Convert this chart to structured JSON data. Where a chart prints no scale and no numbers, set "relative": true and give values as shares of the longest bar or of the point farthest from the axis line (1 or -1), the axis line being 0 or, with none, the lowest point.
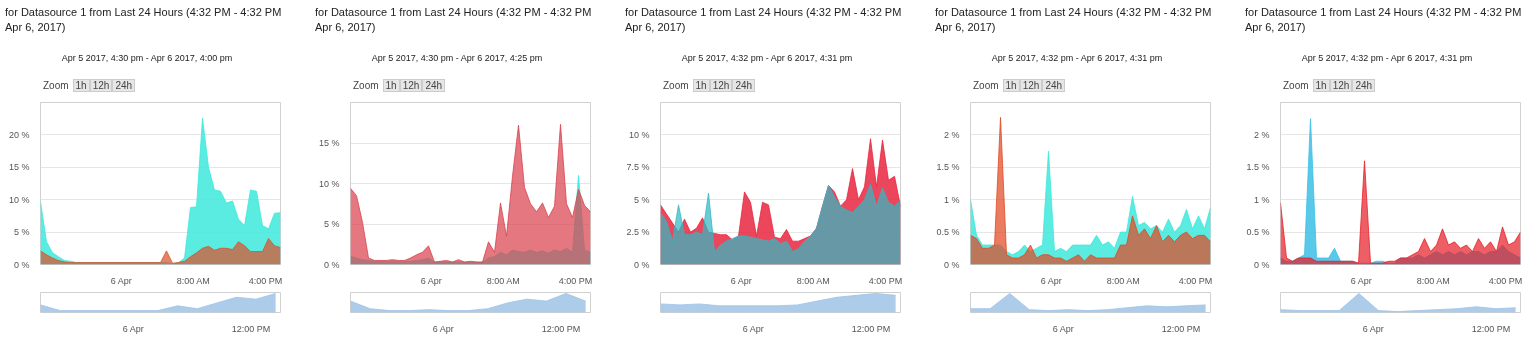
{
  "chart_data": [
    {
      "type": "area",
      "title": "for Datasource 1 from Last 24 Hours (4:32 PM - 4:32 PM Apr 6, 2017)",
      "subtitle": "Apr 5 2017, 4:30 pm - Apr 6 2017, 4:00 pm",
      "annotations": [
        "Zoom",
        "1h",
        "12h",
        "24h"
      ],
      "grid": "y",
      "x": [
        "2017-04-05T15:00",
        "2017-04-05T15:40",
        "2017-04-05T16:20",
        "2017-04-05T17:00",
        "2017-04-05T17:40",
        "2017-04-05T18:20",
        "2017-04-05T19:00",
        "2017-04-05T19:40",
        "2017-04-05T20:20",
        "2017-04-05T21:00",
        "2017-04-05T21:40",
        "2017-04-05T22:20",
        "2017-04-05T23:00",
        "2017-04-05T23:40",
        "2017-04-06T00:20",
        "2017-04-06T01:00",
        "2017-04-06T01:40",
        "2017-04-06T02:20",
        "2017-04-06T03:00",
        "2017-04-06T03:40",
        "2017-04-06T04:20",
        "2017-04-06T05:00",
        "2017-04-06T05:40",
        "2017-04-06T06:20",
        "2017-04-06T07:00",
        "2017-04-06T07:40",
        "2017-04-06T08:20",
        "2017-04-06T09:00",
        "2017-04-06T09:40",
        "2017-04-06T10:20",
        "2017-04-06T11:00",
        "2017-04-06T11:40",
        "2017-04-06T12:20",
        "2017-04-06T13:00",
        "2017-04-06T13:40",
        "2017-04-06T14:20",
        "2017-04-06T15:00",
        "2017-04-06T15:40",
        "2017-04-06T16:20",
        "2017-04-06T17:00",
        "2017-04-06T17:40"
      ],
      "xlim": [
        "2017-04-05T15:00",
        "2017-04-06T17:40"
      ],
      "xticks": [
        {
          "value": "2017-04-06T00:00",
          "label": "6 Apr"
        },
        {
          "value": "2017-04-06T08:00",
          "label": "8:00 AM"
        },
        {
          "value": "2017-04-06T16:00",
          "label": "4:00 PM"
        }
      ],
      "ylim": [
        0,
        25
      ],
      "yticks": [
        {
          "value": 0,
          "label": "0 %"
        },
        {
          "value": 5,
          "label": "5 %"
        },
        {
          "value": 10,
          "label": "10 %"
        },
        {
          "value": 15,
          "label": "15 %"
        },
        {
          "value": 20,
          "label": "20 %"
        }
      ],
      "series": [
        {
          "color": "#3de8dc",
          "values": [
            9.7,
            3.5,
            1.8,
            1.2,
            0.6,
            0.5,
            0.3,
            0.3,
            0.3,
            0.3,
            0.3,
            0.3,
            0.3,
            0.3,
            0.3,
            0.3,
            0.3,
            0.3,
            0.3,
            0.3,
            0.3,
            0.3,
            0.1,
            0.3,
            1.0,
            8.8,
            8.9,
            22.6,
            15.0,
            11.5,
            11.3,
            9.5,
            9.8,
            7.0,
            6.0,
            11.5,
            11.3,
            6.0,
            5.5,
            7.9,
            8.0
          ]
        },
        {
          "color": "#d9532c",
          "values": [
            2.1,
            1.5,
            1.0,
            0.6,
            0.4,
            0.3,
            0.3,
            0.3,
            0.3,
            0.3,
            0.3,
            0.3,
            0.3,
            0.3,
            0.3,
            0.3,
            0.3,
            0.3,
            0.3,
            0.3,
            0.3,
            2.1,
            0.2,
            0.3,
            0.5,
            1.2,
            1.8,
            2.5,
            2.8,
            2.2,
            2.5,
            2.5,
            2.3,
            3.5,
            2.9,
            2.0,
            2.0,
            2.0,
            4.0,
            2.9,
            2.6
          ]
        }
      ]
    },
    {
      "type": "area",
      "relative": true,
      "x": [
        "2017-04-05T14:30",
        "2017-04-05T16:30",
        "2017-04-05T18:30",
        "2017-04-05T20:30",
        "2017-04-05T22:30",
        "2017-04-06T00:30",
        "2017-04-06T02:30",
        "2017-04-06T04:30",
        "2017-04-06T06:30",
        "2017-04-06T08:30",
        "2017-04-06T10:30",
        "2017-04-06T12:30",
        "2017-04-06T14:30"
      ],
      "xlim": [
        "2017-04-05T14:30",
        "2017-04-06T15:00"
      ],
      "xticks": [
        {
          "value": "2017-04-06T00:00",
          "label": "6 Apr"
        },
        {
          "value": "2017-04-06T12:00",
          "label": "12:00 PM"
        }
      ],
      "series": [
        {
          "color": "#9ec3e6",
          "values": [
            0.4,
            0.1,
            0.1,
            0.1,
            0.1,
            0.1,
            0.1,
            0.35,
            0.2,
            0.5,
            0.8,
            0.7,
            1
          ]
        }
      ]
    },
    {
      "type": "area",
      "title": "for Datasource 1 from Last 24 Hours (4:32 PM - 4:32 PM Apr 6, 2017)",
      "subtitle": "Apr 5 2017, 4:30 pm - Apr 6 2017, 4:25 pm",
      "annotations": [
        "Zoom",
        "1h",
        "12h",
        "24h"
      ],
      "grid": "y",
      "x": [
        "2017-04-05T15:00",
        "2017-04-05T15:40",
        "2017-04-05T16:20",
        "2017-04-05T17:00",
        "2017-04-05T17:40",
        "2017-04-05T18:20",
        "2017-04-05T19:00",
        "2017-04-05T19:40",
        "2017-04-05T20:20",
        "2017-04-05T21:00",
        "2017-04-05T21:40",
        "2017-04-05T22:20",
        "2017-04-05T23:00",
        "2017-04-05T23:40",
        "2017-04-06T00:20",
        "2017-04-06T01:00",
        "2017-04-06T01:40",
        "2017-04-06T02:20",
        "2017-04-06T03:00",
        "2017-04-06T03:40",
        "2017-04-06T04:20",
        "2017-04-06T05:00",
        "2017-04-06T05:40",
        "2017-04-06T06:20",
        "2017-04-06T07:00",
        "2017-04-06T07:40",
        "2017-04-06T08:20",
        "2017-04-06T09:00",
        "2017-04-06T09:40",
        "2017-04-06T10:20",
        "2017-04-06T11:00",
        "2017-04-06T11:40",
        "2017-04-06T12:20",
        "2017-04-06T13:00",
        "2017-04-06T13:40",
        "2017-04-06T14:20",
        "2017-04-06T15:00",
        "2017-04-06T15:40",
        "2017-04-06T16:20",
        "2017-04-06T17:00",
        "2017-04-06T17:40"
      ],
      "xlim": [
        "2017-04-05T15:00",
        "2017-04-06T17:40"
      ],
      "xticks": [
        {
          "value": "2017-04-06T00:00",
          "label": "6 Apr"
        },
        {
          "value": "2017-04-06T08:00",
          "label": "8:00 AM"
        },
        {
          "value": "2017-04-06T16:00",
          "label": "4:00 PM"
        }
      ],
      "ylim": [
        0,
        20
      ],
      "yticks": [
        {
          "value": 0,
          "label": "0 %"
        },
        {
          "value": 5,
          "label": "5 %"
        },
        {
          "value": 10,
          "label": "10 %"
        },
        {
          "value": 15,
          "label": "15 %"
        }
      ],
      "series": [
        {
          "color": "#3de8dc",
          "values": [
            1.0,
            0.8,
            0.6,
            0.5,
            0.4,
            0.4,
            0.4,
            0.4,
            0.4,
            0.4,
            0.4,
            0.5,
            0.6,
            0.8,
            0.3,
            0.3,
            0.3,
            0.3,
            0.3,
            0.3,
            0.3,
            0.3,
            0.3,
            0.8,
            1.0,
            1.5,
            1.2,
            1.8,
            1.6,
            1.5,
            1.8,
            1.5,
            1.7,
            1.4,
            1.8,
            1.6,
            2.0,
            1.5,
            11.0,
            1.8,
            1.5
          ]
        },
        {
          "color": "#d9434e",
          "values": [
            9.4,
            8.5,
            5.2,
            0.8,
            0.5,
            0.5,
            0.5,
            0.6,
            0.5,
            0.5,
            0.8,
            1.2,
            1.5,
            2.3,
            0.3,
            0.4,
            0.5,
            0.3,
            0.6,
            0.3,
            0.4,
            0.3,
            0.3,
            2.8,
            1.5,
            7.6,
            3.5,
            10.9,
            17.2,
            9.5,
            7.5,
            6.5,
            7.6,
            5.8,
            7.2,
            17.3,
            7.5,
            5.8,
            9.3,
            7.3,
            6.5
          ]
        }
      ]
    },
    {
      "type": "area",
      "relative": true,
      "x": [
        "2017-04-05T14:30",
        "2017-04-05T16:30",
        "2017-04-05T18:30",
        "2017-04-05T20:30",
        "2017-04-05T22:30",
        "2017-04-06T00:30",
        "2017-04-06T02:30",
        "2017-04-06T04:30",
        "2017-04-06T06:30",
        "2017-04-06T08:30",
        "2017-04-06T10:30",
        "2017-04-06T12:30",
        "2017-04-06T14:30"
      ],
      "xlim": [
        "2017-04-05T14:30",
        "2017-04-06T15:00"
      ],
      "xticks": [
        {
          "value": "2017-04-06T00:00",
          "label": "6 Apr"
        },
        {
          "value": "2017-04-06T12:00",
          "label": "12:00 PM"
        }
      ],
      "series": [
        {
          "color": "#9ec3e6",
          "values": [
            0.6,
            0.2,
            0.1,
            0.1,
            0.15,
            0.1,
            0.1,
            0.2,
            0.5,
            0.7,
            0.6,
            1,
            0.6
          ]
        }
      ]
    },
    {
      "type": "area",
      "title": "for Datasource 1 from Last 24 Hours (4:32 PM - 4:32 PM Apr 6, 2017)",
      "subtitle": "Apr 5 2017, 4:32 pm - Apr 6 2017, 4:31 pm",
      "annotations": [
        "Zoom",
        "1h",
        "12h",
        "24h"
      ],
      "grid": "y",
      "x": [
        "2017-04-05T15:00",
        "2017-04-05T15:40",
        "2017-04-05T16:20",
        "2017-04-05T17:00",
        "2017-04-05T17:40",
        "2017-04-05T18:20",
        "2017-04-05T19:00",
        "2017-04-05T19:40",
        "2017-04-05T20:20",
        "2017-04-05T21:00",
        "2017-04-05T21:40",
        "2017-04-05T22:20",
        "2017-04-05T23:00",
        "2017-04-05T23:40",
        "2017-04-06T00:20",
        "2017-04-06T01:00",
        "2017-04-06T01:40",
        "2017-04-06T02:20",
        "2017-04-06T03:00",
        "2017-04-06T03:40",
        "2017-04-06T04:20",
        "2017-04-06T05:00",
        "2017-04-06T05:40",
        "2017-04-06T06:20",
        "2017-04-06T07:00",
        "2017-04-06T07:40",
        "2017-04-06T08:20",
        "2017-04-06T09:00",
        "2017-04-06T09:40",
        "2017-04-06T10:20",
        "2017-04-06T11:00",
        "2017-04-06T11:40",
        "2017-04-06T12:20",
        "2017-04-06T13:00",
        "2017-04-06T13:40",
        "2017-04-06T14:20",
        "2017-04-06T15:00",
        "2017-04-06T15:40",
        "2017-04-06T16:20",
        "2017-04-06T17:00",
        "2017-04-06T17:40"
      ],
      "xlim": [
        "2017-04-05T15:00",
        "2017-04-06T17:40"
      ],
      "xticks": [
        {
          "value": "2017-04-06T00:00",
          "label": "6 Apr"
        },
        {
          "value": "2017-04-06T08:00",
          "label": "8:00 AM"
        },
        {
          "value": "2017-04-06T16:00",
          "label": "4:00 PM"
        }
      ],
      "ylim": [
        0,
        12.5
      ],
      "yticks": [
        {
          "value": 0,
          "label": "0 %"
        },
        {
          "value": 2.5,
          "label": "2.5 %"
        },
        {
          "value": 5,
          "label": "5 %"
        },
        {
          "value": 7.5,
          "label": "7.5 %"
        },
        {
          "value": 10,
          "label": "10 %"
        }
      ],
      "series": [
        {
          "color": "#e8263f",
          "values": [
            4.6,
            3.9,
            3.2,
            2.5,
            3.5,
            2.5,
            2.8,
            3.6,
            2.5,
            2.4,
            2.3,
            2.3,
            1.9,
            2.2,
            5.6,
            4.8,
            2.2,
            4.8,
            4.6,
            2.1,
            2.0,
            2.7,
            1.8,
            1.8,
            2.0,
            2.2,
            2.8,
            4.5,
            6.1,
            5.6,
            4.5,
            5.0,
            7.4,
            5.0,
            6.0,
            9.7,
            6.0,
            9.6,
            6.5,
            6.8,
            4.5
          ]
        },
        {
          "color": "#33b8c4",
          "values": [
            4.0,
            3.3,
            1.8,
            4.6,
            2.3,
            2.3,
            2.5,
            2.3,
            5.5,
            1.0,
            1.5,
            1.8,
            2.0,
            2.2,
            2.2,
            2.1,
            2.0,
            1.9,
            1.8,
            2.0,
            1.6,
            1.8,
            1.0,
            1.2,
            1.8,
            2.2,
            2.8,
            4.5,
            6.1,
            5.2,
            4.5,
            4.2,
            4.0,
            4.5,
            5.0,
            6.2,
            4.5,
            5.9,
            4.8,
            4.5,
            4.9
          ]
        }
      ]
    },
    {
      "type": "area",
      "relative": true,
      "x": [
        "2017-04-05T14:30",
        "2017-04-05T16:30",
        "2017-04-05T18:30",
        "2017-04-05T20:30",
        "2017-04-05T22:30",
        "2017-04-06T00:30",
        "2017-04-06T02:30",
        "2017-04-06T04:30",
        "2017-04-06T06:30",
        "2017-04-06T08:30",
        "2017-04-06T10:30",
        "2017-04-06T12:30",
        "2017-04-06T14:30"
      ],
      "xlim": [
        "2017-04-05T14:30",
        "2017-04-06T15:00"
      ],
      "xticks": [
        {
          "value": "2017-04-06T00:00",
          "label": "6 Apr"
        },
        {
          "value": "2017-04-06T12:00",
          "label": "12:00 PM"
        }
      ],
      "series": [
        {
          "color": "#9ec3e6",
          "values": [
            0.45,
            0.4,
            0.45,
            0.35,
            0.35,
            0.35,
            0.35,
            0.4,
            0.6,
            0.8,
            0.9,
            1,
            0.9
          ]
        }
      ]
    },
    {
      "type": "area",
      "title": "for Datasource 1 from Last 24 Hours (4:32 PM - 4:32 PM Apr 6, 2017)",
      "subtitle": "Apr 5 2017, 4:32 pm - Apr 6 2017, 4:31 pm",
      "annotations": [
        "Zoom",
        "1h",
        "12h",
        "24h"
      ],
      "grid": "y",
      "x": [
        "2017-04-05T15:00",
        "2017-04-05T15:40",
        "2017-04-05T16:20",
        "2017-04-05T17:00",
        "2017-04-05T17:40",
        "2017-04-05T18:20",
        "2017-04-05T19:00",
        "2017-04-05T19:40",
        "2017-04-05T20:20",
        "2017-04-05T21:00",
        "2017-04-05T21:40",
        "2017-04-05T22:20",
        "2017-04-05T23:00",
        "2017-04-05T23:40",
        "2017-04-06T00:20",
        "2017-04-06T01:00",
        "2017-04-06T01:40",
        "2017-04-06T02:20",
        "2017-04-06T03:00",
        "2017-04-06T03:40",
        "2017-04-06T04:20",
        "2017-04-06T05:00",
        "2017-04-06T05:40",
        "2017-04-06T06:20",
        "2017-04-06T07:00",
        "2017-04-06T07:40",
        "2017-04-06T08:20",
        "2017-04-06T09:00",
        "2017-04-06T09:40",
        "2017-04-06T10:20",
        "2017-04-06T11:00",
        "2017-04-06T11:40",
        "2017-04-06T12:20",
        "2017-04-06T13:00",
        "2017-04-06T13:40",
        "2017-04-06T14:20",
        "2017-04-06T15:00",
        "2017-04-06T15:40",
        "2017-04-06T16:20",
        "2017-04-06T17:00",
        "2017-04-06T17:40"
      ],
      "xlim": [
        "2017-04-05T15:00",
        "2017-04-06T17:40"
      ],
      "xticks": [
        {
          "value": "2017-04-06T00:00",
          "label": "6 Apr"
        },
        {
          "value": "2017-04-06T08:00",
          "label": "8:00 AM"
        },
        {
          "value": "2017-04-06T16:00",
          "label": "4:00 PM"
        }
      ],
      "ylim": [
        0,
        2.5
      ],
      "yticks": [
        {
          "value": 0,
          "label": "0 %"
        },
        {
          "value": 0.5,
          "label": "0.5 %"
        },
        {
          "value": 1,
          "label": "1 %"
        },
        {
          "value": 1.5,
          "label": "1.5 %"
        },
        {
          "value": 2,
          "label": "2 %"
        }
      ],
      "series": [
        {
          "color": "#3de8dc",
          "values": [
            1.0,
            0.45,
            0.3,
            0.3,
            0.3,
            0.3,
            0.2,
            0.15,
            0.2,
            0.3,
            0.2,
            0.25,
            0.3,
            1.75,
            0.2,
            0.25,
            0.2,
            0.3,
            0.3,
            0.3,
            0.3,
            0.45,
            0.3,
            0.35,
            0.25,
            0.5,
            0.5,
            1.05,
            0.6,
            0.65,
            0.55,
            0.6,
            0.5,
            0.7,
            0.5,
            0.6,
            0.85,
            0.55,
            0.75,
            0.55,
            0.88
          ]
        },
        {
          "color": "#e04a24",
          "values": [
            0.45,
            0.4,
            0.25,
            0.25,
            0.3,
            2.27,
            0.15,
            0.1,
            0.1,
            0.15,
            0.3,
            0.1,
            0.15,
            0.15,
            0.1,
            0.1,
            0.05,
            0.1,
            0.15,
            0.05,
            0.15,
            0.1,
            0.1,
            0.1,
            0.1,
            0.3,
            0.3,
            0.75,
            0.45,
            0.55,
            0.4,
            0.6,
            0.35,
            0.45,
            0.35,
            0.45,
            0.5,
            0.4,
            0.45,
            0.45,
            0.35
          ]
        }
      ]
    },
    {
      "type": "area",
      "relative": true,
      "x": [
        "2017-04-05T14:30",
        "2017-04-05T16:30",
        "2017-04-05T18:30",
        "2017-04-05T20:30",
        "2017-04-05T22:30",
        "2017-04-06T00:30",
        "2017-04-06T02:30",
        "2017-04-06T04:30",
        "2017-04-06T06:30",
        "2017-04-06T08:30",
        "2017-04-06T10:30",
        "2017-04-06T12:30",
        "2017-04-06T14:30"
      ],
      "xlim": [
        "2017-04-05T14:30",
        "2017-04-06T15:00"
      ],
      "xticks": [
        {
          "value": "2017-04-06T00:00",
          "label": "6 Apr"
        },
        {
          "value": "2017-04-06T12:00",
          "label": "12:00 PM"
        }
      ],
      "series": [
        {
          "color": "#9ec3e6",
          "values": [
            0.2,
            0.2,
            1,
            0.15,
            0.1,
            0.15,
            0.1,
            0.15,
            0.25,
            0.35,
            0.3,
            0.35,
            0.4
          ]
        }
      ]
    },
    {
      "type": "area",
      "title": "for Datasource 1 from Last 24 Hours (4:32 PM - 4:32 PM Apr 6, 2017)",
      "subtitle": "Apr 5 2017, 4:32 pm - Apr 6 2017, 4:31 pm",
      "annotations": [
        "Zoom",
        "1h",
        "12h",
        "24h"
      ],
      "grid": "y",
      "x": [
        "2017-04-05T15:00",
        "2017-04-05T15:40",
        "2017-04-05T16:20",
        "2017-04-05T17:00",
        "2017-04-05T17:40",
        "2017-04-05T18:20",
        "2017-04-05T19:00",
        "2017-04-05T19:40",
        "2017-04-05T20:20",
        "2017-04-05T21:00",
        "2017-04-05T21:40",
        "2017-04-05T22:20",
        "2017-04-05T23:00",
        "2017-04-05T23:40",
        "2017-04-06T00:20",
        "2017-04-06T01:00",
        "2017-04-06T01:40",
        "2017-04-06T02:20",
        "2017-04-06T03:00",
        "2017-04-06T03:40",
        "2017-04-06T04:20",
        "2017-04-06T05:00",
        "2017-04-06T05:40",
        "2017-04-06T06:20",
        "2017-04-06T07:00",
        "2017-04-06T07:40",
        "2017-04-06T08:20",
        "2017-04-06T09:00",
        "2017-04-06T09:40",
        "2017-04-06T10:20",
        "2017-04-06T11:00",
        "2017-04-06T11:40",
        "2017-04-06T12:20",
        "2017-04-06T13:00",
        "2017-04-06T13:40",
        "2017-04-06T14:20",
        "2017-04-06T15:00",
        "2017-04-06T15:40",
        "2017-04-06T16:20",
        "2017-04-06T17:00",
        "2017-04-06T17:40"
      ],
      "xlim": [
        "2017-04-05T15:00",
        "2017-04-06T17:40"
      ],
      "xticks": [
        {
          "value": "2017-04-06T00:00",
          "label": "6 Apr"
        },
        {
          "value": "2017-04-06T08:00",
          "label": "8:00 AM"
        },
        {
          "value": "2017-04-06T16:00",
          "label": "4:00 PM"
        }
      ],
      "ylim": [
        0,
        2.5
      ],
      "yticks": [
        {
          "value": 0,
          "label": "0 %"
        },
        {
          "value": 0.5,
          "label": "0.5 %"
        },
        {
          "value": 1,
          "label": "1 %"
        },
        {
          "value": 1.5,
          "label": "1.5 %"
        },
        {
          "value": 2,
          "label": "2 %"
        }
      ],
      "series": [
        {
          "color": "#3bbfe6",
          "values": [
            0.1,
            0.05,
            0.05,
            0.1,
            0.15,
            2.25,
            0.1,
            0.1,
            0.1,
            0.25,
            0.05,
            0.05,
            0.05,
            0.02,
            0.02,
            0.02,
            0.05,
            0.05,
            0.02,
            0.02,
            0.1,
            0.1,
            0.1,
            0.15,
            0.1,
            0.15,
            0.2,
            0.15,
            0.2,
            0.15,
            0.2,
            0.15,
            0.2,
            0.2,
            0.15,
            0.2,
            0.2,
            0.3,
            0.2,
            0.15,
            0.1
          ]
        },
        {
          "color": "#e8202a",
          "values": [
            0.95,
            0.1,
            0.05,
            0.1,
            0.1,
            0.1,
            0.05,
            0.05,
            0.05,
            0.05,
            0.05,
            0.05,
            0.05,
            0.02,
            1.6,
            0.02,
            0.02,
            0.02,
            0.05,
            0.05,
            0.1,
            0.1,
            0.15,
            0.2,
            0.4,
            0.2,
            0.3,
            0.55,
            0.3,
            0.35,
            0.25,
            0.3,
            0.2,
            0.4,
            0.25,
            0.35,
            0.2,
            0.58,
            0.3,
            0.35,
            0.5
          ]
        }
      ]
    },
    {
      "type": "area",
      "relative": true,
      "x": [
        "2017-04-05T14:30",
        "2017-04-05T16:30",
        "2017-04-05T18:30",
        "2017-04-05T20:30",
        "2017-04-05T22:30",
        "2017-04-06T00:30",
        "2017-04-06T02:30",
        "2017-04-06T04:30",
        "2017-04-06T06:30",
        "2017-04-06T08:30",
        "2017-04-06T10:30",
        "2017-04-06T12:30",
        "2017-04-06T14:30"
      ],
      "xlim": [
        "2017-04-05T14:30",
        "2017-04-06T15:00"
      ],
      "xticks": [
        {
          "value": "2017-04-06T00:00",
          "label": "6 Apr"
        },
        {
          "value": "2017-04-06T12:00",
          "label": "12:00 PM"
        }
      ],
      "series": [
        {
          "color": "#9ec3e6",
          "values": [
            0.15,
            0.1,
            0.1,
            0.1,
            1,
            0.1,
            0.05,
            0.1,
            0.15,
            0.2,
            0.3,
            0.2,
            0.25
          ]
        }
      ]
    }
  ]
}
